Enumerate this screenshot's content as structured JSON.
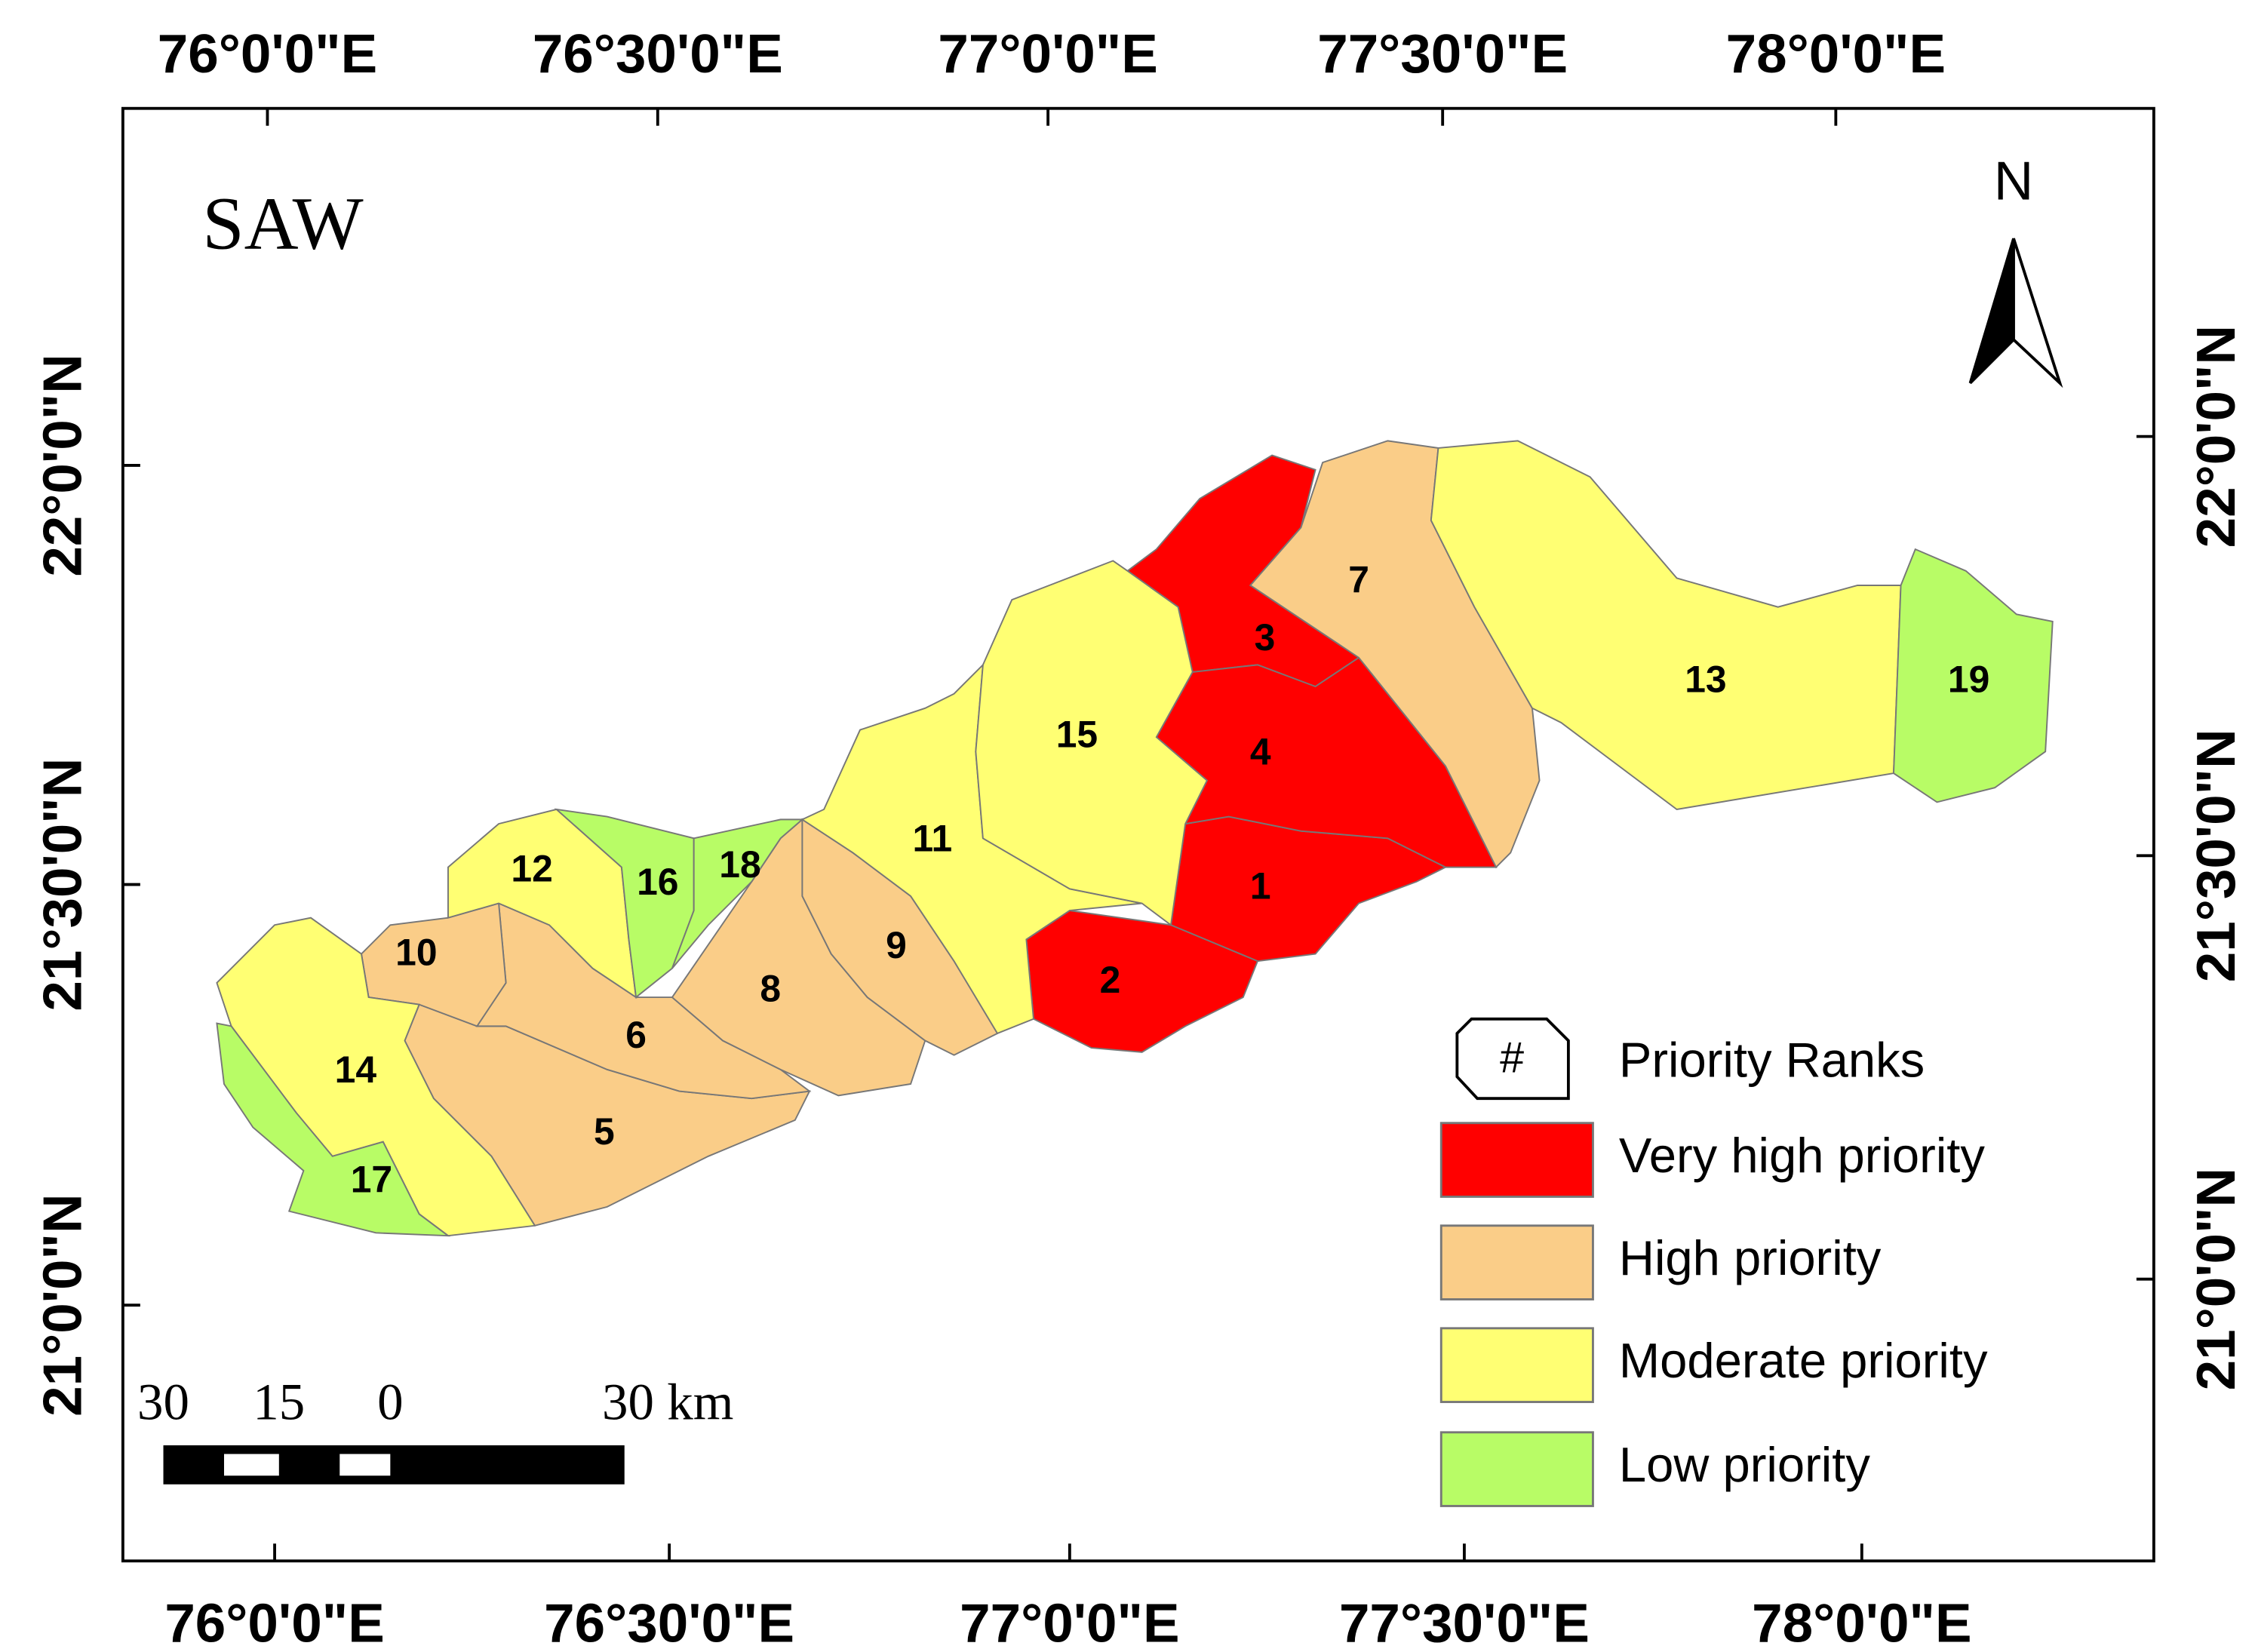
{
  "title": "SAW",
  "north": "N",
  "graticule": {
    "top": [
      "76°0'0\"E",
      "76°30'0\"E",
      "77°0'0\"E",
      "77°30'0\"E",
      "78°0'0\"E"
    ],
    "bottom": [
      "76°0'0\"E",
      "76°30'0\"E",
      "77°0'0\"E",
      "77°30'0\"E",
      "78°0'0\"E"
    ],
    "left": [
      "22°0'0\"N",
      "21°30'0\"N",
      "21°0'0\"N"
    ],
    "right": [
      "22°0'0\"N",
      "21°30'0\"N",
      "21°0'0\"N"
    ]
  },
  "legend": {
    "title": "Priority Ranks",
    "symbol": "#",
    "items": [
      {
        "label": "Very high priority",
        "color": "#ff0000",
        "subbasins": [
          "1",
          "2",
          "3",
          "4"
        ]
      },
      {
        "label": "High priority",
        "color": "#facd88",
        "subbasins": [
          "5",
          "6",
          "7",
          "8",
          "9",
          "10"
        ]
      },
      {
        "label": "Moderate priority",
        "color": "#ffff73",
        "subbasins": [
          "11",
          "12",
          "13",
          "14",
          "15"
        ]
      },
      {
        "label": "Low priority",
        "color": "#b8fc66",
        "subbasins": [
          "16",
          "17",
          "18",
          "19"
        ]
      }
    ]
  },
  "scale_bar": [
    "30",
    "15",
    "0",
    "30 km"
  ]
}
